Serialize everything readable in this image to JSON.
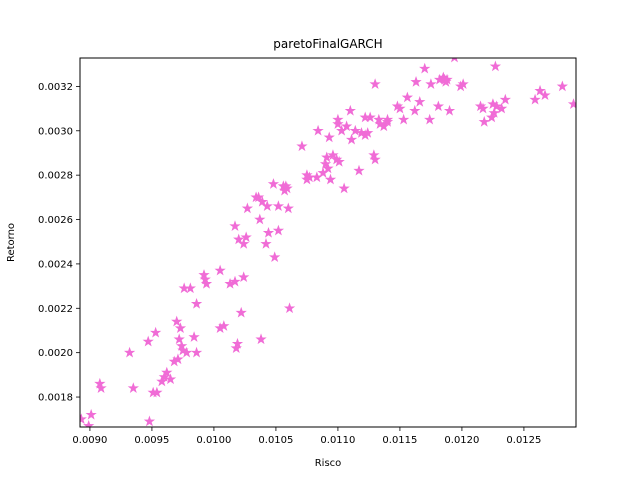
{
  "chart_data": {
    "type": "scatter",
    "title": "paretoFinalGARCH",
    "xlabel": "Risco",
    "ylabel": "Retorno",
    "xlim": [
      0.00892,
      0.01292
    ],
    "ylim": [
      0.001665,
      0.003328
    ],
    "xticks": [
      0.009,
      0.0095,
      0.01,
      0.0105,
      0.011,
      0.0115,
      0.012,
      0.0125
    ],
    "xtick_labels": [
      "0.0090",
      "0.0095",
      "0.0100",
      "0.0105",
      "0.0110",
      "0.0115",
      "0.0120",
      "0.0125"
    ],
    "yticks": [
      0.0018,
      0.002,
      0.0022,
      0.0024,
      0.0026,
      0.0028,
      0.003,
      0.0032
    ],
    "ytick_labels": [
      "0.0018",
      "0.0020",
      "0.0022",
      "0.0024",
      "0.0026",
      "0.0028",
      "0.0030",
      "0.0032"
    ],
    "grid": false,
    "marker": "star",
    "color": "#f06cd6",
    "points": [
      [
        0.00893,
        0.0017
      ],
      [
        0.00899,
        0.00167
      ],
      [
        0.00901,
        0.00172
      ],
      [
        0.00908,
        0.00186
      ],
      [
        0.00909,
        0.00184
      ],
      [
        0.00932,
        0.002
      ],
      [
        0.00935,
        0.00184
      ],
      [
        0.00947,
        0.00205
      ],
      [
        0.00948,
        0.00169
      ],
      [
        0.00951,
        0.00182
      ],
      [
        0.00953,
        0.00209
      ],
      [
        0.00954,
        0.00182
      ],
      [
        0.00958,
        0.00187
      ],
      [
        0.0096,
        0.00189
      ],
      [
        0.00962,
        0.00191
      ],
      [
        0.00965,
        0.00188
      ],
      [
        0.00968,
        0.00196
      ],
      [
        0.0097,
        0.00214
      ],
      [
        0.00971,
        0.00197
      ],
      [
        0.00972,
        0.00206
      ],
      [
        0.00973,
        0.00211
      ],
      [
        0.00974,
        0.00203
      ],
      [
        0.00975,
        0.00201
      ],
      [
        0.00976,
        0.00229
      ],
      [
        0.00978,
        0.002
      ],
      [
        0.00981,
        0.00229
      ],
      [
        0.00984,
        0.00207
      ],
      [
        0.00986,
        0.00222
      ],
      [
        0.00986,
        0.002
      ],
      [
        0.00992,
        0.00235
      ],
      [
        0.00993,
        0.00233
      ],
      [
        0.00994,
        0.00231
      ],
      [
        0.01005,
        0.00211
      ],
      [
        0.01005,
        0.00237
      ],
      [
        0.01008,
        0.00212
      ],
      [
        0.01013,
        0.00231
      ],
      [
        0.01017,
        0.00257
      ],
      [
        0.01017,
        0.00232
      ],
      [
        0.01018,
        0.00202
      ],
      [
        0.01019,
        0.00204
      ],
      [
        0.0102,
        0.00251
      ],
      [
        0.01022,
        0.00218
      ],
      [
        0.01024,
        0.00249
      ],
      [
        0.01024,
        0.00234
      ],
      [
        0.01026,
        0.00252
      ],
      [
        0.01027,
        0.00265
      ],
      [
        0.01034,
        0.0027
      ],
      [
        0.01036,
        0.0027
      ],
      [
        0.01037,
        0.0026
      ],
      [
        0.01039,
        0.00268
      ],
      [
        0.01038,
        0.00206
      ],
      [
        0.01042,
        0.00249
      ],
      [
        0.01043,
        0.00266
      ],
      [
        0.01044,
        0.00254
      ],
      [
        0.01048,
        0.00276
      ],
      [
        0.01049,
        0.00243
      ],
      [
        0.01052,
        0.00266
      ],
      [
        0.01052,
        0.00255
      ],
      [
        0.01056,
        0.00275
      ],
      [
        0.01057,
        0.00273
      ],
      [
        0.01058,
        0.00275
      ],
      [
        0.01059,
        0.00274
      ],
      [
        0.0106,
        0.00265
      ],
      [
        0.01061,
        0.0022
      ],
      [
        0.01071,
        0.00293
      ],
      [
        0.01075,
        0.0028
      ],
      [
        0.01075,
        0.00278
      ],
      [
        0.01077,
        0.00279
      ],
      [
        0.01083,
        0.00279
      ],
      [
        0.01084,
        0.003
      ],
      [
        0.01088,
        0.00281
      ],
      [
        0.0109,
        0.00285
      ],
      [
        0.01091,
        0.00288
      ],
      [
        0.01092,
        0.00283
      ],
      [
        0.01093,
        0.00297
      ],
      [
        0.01094,
        0.00278
      ],
      [
        0.01096,
        0.00289
      ],
      [
        0.01099,
        0.00287
      ],
      [
        0.011,
        0.00303
      ],
      [
        0.011,
        0.00305
      ],
      [
        0.01101,
        0.00286
      ],
      [
        0.01103,
        0.003
      ],
      [
        0.01105,
        0.00274
      ],
      [
        0.01107,
        0.00302
      ],
      [
        0.0111,
        0.00309
      ],
      [
        0.01111,
        0.00296
      ],
      [
        0.01114,
        0.003
      ],
      [
        0.01117,
        0.00282
      ],
      [
        0.01119,
        0.00299
      ],
      [
        0.01122,
        0.00298
      ],
      [
        0.01122,
        0.00306
      ],
      [
        0.01124,
        0.00299
      ],
      [
        0.01126,
        0.00306
      ],
      [
        0.01129,
        0.00289
      ],
      [
        0.0113,
        0.00287
      ],
      [
        0.0113,
        0.00321
      ],
      [
        0.01133,
        0.00305
      ],
      [
        0.01134,
        0.00303
      ],
      [
        0.01137,
        0.00302
      ],
      [
        0.0114,
        0.00305
      ],
      [
        0.0114,
        0.00304
      ],
      [
        0.01148,
        0.00311
      ],
      [
        0.0115,
        0.0031
      ],
      [
        0.01153,
        0.00305
      ],
      [
        0.01156,
        0.00315
      ],
      [
        0.01162,
        0.00309
      ],
      [
        0.01163,
        0.00322
      ],
      [
        0.01166,
        0.00313
      ],
      [
        0.0117,
        0.00328
      ],
      [
        0.01174,
        0.00305
      ],
      [
        0.01175,
        0.00321
      ],
      [
        0.01181,
        0.00311
      ],
      [
        0.01182,
        0.00323
      ],
      [
        0.01185,
        0.00324
      ],
      [
        0.01186,
        0.00323
      ],
      [
        0.01187,
        0.00322
      ],
      [
        0.01188,
        0.00323
      ],
      [
        0.0119,
        0.00309
      ],
      [
        0.01194,
        0.00333
      ],
      [
        0.01199,
        0.0032
      ],
      [
        0.01201,
        0.00321
      ],
      [
        0.01215,
        0.00311
      ],
      [
        0.01217,
        0.0031
      ],
      [
        0.01218,
        0.00304
      ],
      [
        0.01224,
        0.00306
      ],
      [
        0.01225,
        0.00312
      ],
      [
        0.01226,
        0.00308
      ],
      [
        0.01227,
        0.00329
      ],
      [
        0.01228,
        0.00311
      ],
      [
        0.01232,
        0.0031
      ],
      [
        0.01235,
        0.00314
      ],
      [
        0.01259,
        0.00314
      ],
      [
        0.01263,
        0.00318
      ],
      [
        0.01267,
        0.00316
      ],
      [
        0.01281,
        0.0032
      ],
      [
        0.0129,
        0.00312
      ]
    ]
  }
}
